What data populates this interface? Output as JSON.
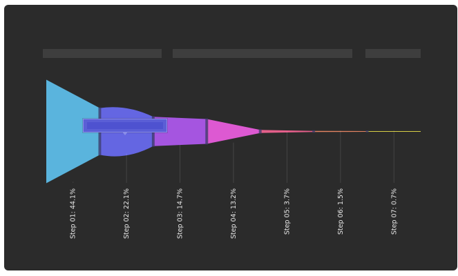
{
  "chart_data": {
    "type": "funnel",
    "title": "",
    "xlabel": "",
    "ylabel": "",
    "categories": [
      "Step 01",
      "Step 02",
      "Step 03",
      "Step 04",
      "Step 05",
      "Step 06",
      "Step 07"
    ],
    "percentages": [
      44.1,
      22.1,
      14.7,
      13.2,
      3.7,
      1.5,
      0.7
    ],
    "tick_labels": [
      "Step 01: 44.1%",
      "Step 02: 22.1%",
      "Step 03: 14.7%",
      "Step 04: 13.2%",
      "Step 05: 3.7%",
      "Step 06: 1.5%",
      "Step 07: 0.7%"
    ],
    "colors": [
      "#5ab4dd",
      "#6466e2",
      "#a555e0",
      "#dd59d2",
      "#e45f8a",
      "#e58462",
      "#d9cf45"
    ],
    "legend_placement": "top",
    "grid": false,
    "tooltip_visible_on": "Step 02"
  }
}
